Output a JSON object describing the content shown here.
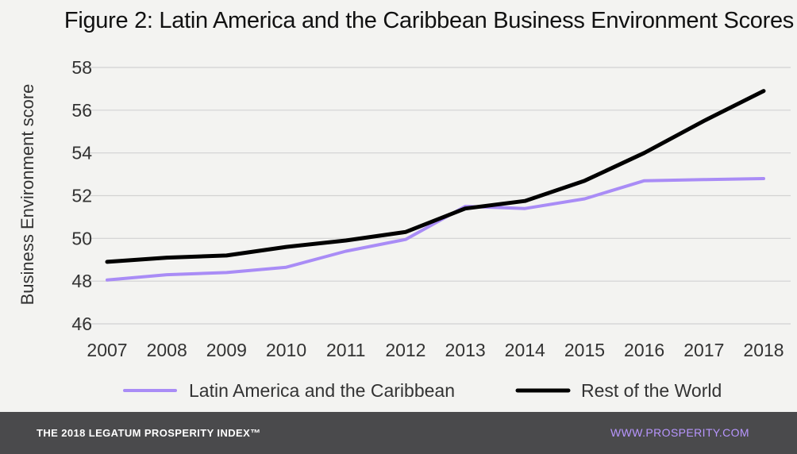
{
  "colors": {
    "background": "#f3f3f1",
    "grid": "#d2d2d2",
    "latam": "#a98cf6",
    "row": "#000000",
    "footer_bg": "#4a4a4c",
    "footer_link": "#b896ff"
  },
  "chart_data": {
    "type": "line",
    "title": "Figure 2: Latin America and the Caribbean Business Environment Scores",
    "xlabel": "",
    "ylabel": "Business Environment score",
    "categories": [
      "2007",
      "2008",
      "2009",
      "2010",
      "2011",
      "2012",
      "2013",
      "2014",
      "2015",
      "2016",
      "2017",
      "2018"
    ],
    "yticks": [
      46,
      48,
      50,
      52,
      54,
      56,
      58
    ],
    "ylim": [
      46,
      58
    ],
    "grid": true,
    "legend_position": "bottom",
    "series": [
      {
        "name": "Latin America and the Caribbean",
        "color": "#a98cf6",
        "values": [
          48.05,
          48.3,
          48.4,
          48.65,
          49.4,
          49.95,
          51.5,
          51.4,
          51.85,
          52.7,
          52.75,
          52.8
        ]
      },
      {
        "name": "Rest of the World",
        "color": "#000000",
        "values": [
          48.9,
          49.1,
          49.2,
          49.6,
          49.9,
          50.3,
          51.4,
          51.75,
          52.7,
          54.0,
          55.5,
          56.9
        ]
      }
    ]
  },
  "footer": {
    "left": "THE 2018 LEGATUM PROSPERITY INDEX™",
    "right": "WWW.PROSPERITY.COM"
  }
}
